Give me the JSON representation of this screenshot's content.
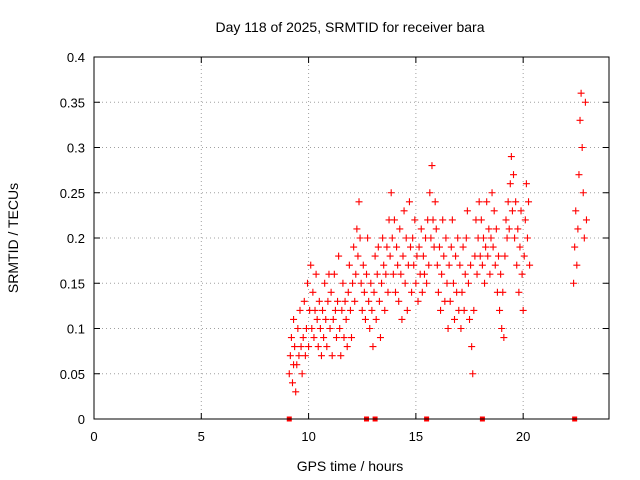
{
  "chart_data": {
    "type": "scatter",
    "title": "Day 118 of 2025, SRMTID for receiver bara",
    "xlabel": "GPS time / hours",
    "ylabel": "SRMTID / TECUs",
    "xlim": [
      0,
      24
    ],
    "ylim": [
      0,
      0.4
    ],
    "x_ticks": [
      0,
      5,
      10,
      15,
      20
    ],
    "x_tick_labels": [
      "0",
      "5",
      "10",
      "15",
      "20"
    ],
    "y_ticks": [
      0,
      0.05,
      0.1,
      0.15,
      0.2,
      0.25,
      0.3,
      0.35,
      0.4
    ],
    "y_tick_labels": [
      "0",
      "0.05",
      "0.1",
      "0.15",
      "0.2",
      "0.25",
      "0.3",
      "0.35",
      "0.4"
    ],
    "grid": true,
    "marker": "+",
    "color": "#ff0000",
    "series": [
      {
        "name": "SRMTID",
        "points": [
          [
            9.1,
            0.05
          ],
          [
            9.15,
            0.07
          ],
          [
            9.2,
            0.09
          ],
          [
            9.25,
            0.04
          ],
          [
            9.3,
            0.06
          ],
          [
            9.3,
            0.11
          ],
          [
            9.35,
            0.08
          ],
          [
            9.4,
            0.03
          ],
          [
            9.45,
            0.06
          ],
          [
            9.5,
            0.1
          ],
          [
            9.55,
            0.07
          ],
          [
            9.6,
            0.12
          ],
          [
            9.65,
            0.08
          ],
          [
            9.7,
            0.05
          ],
          [
            9.75,
            0.09
          ],
          [
            9.8,
            0.13
          ],
          [
            9.85,
            0.07
          ],
          [
            9.9,
            0.1
          ],
          [
            9.95,
            0.15
          ],
          [
            10.0,
            0.08
          ],
          [
            10.05,
            0.12
          ],
          [
            10.1,
            0.17
          ],
          [
            10.15,
            0.1
          ],
          [
            10.2,
            0.14
          ],
          [
            10.25,
            0.09
          ],
          [
            10.3,
            0.12
          ],
          [
            10.35,
            0.16
          ],
          [
            10.4,
            0.11
          ],
          [
            10.45,
            0.08
          ],
          [
            10.5,
            0.13
          ],
          [
            10.55,
            0.1
          ],
          [
            10.6,
            0.07
          ],
          [
            10.65,
            0.12
          ],
          [
            10.7,
            0.09
          ],
          [
            10.75,
            0.15
          ],
          [
            10.8,
            0.11
          ],
          [
            10.85,
            0.08
          ],
          [
            10.9,
            0.13
          ],
          [
            10.95,
            0.16
          ],
          [
            11.0,
            0.1
          ],
          [
            11.05,
            0.14
          ],
          [
            11.1,
            0.07
          ],
          [
            11.15,
            0.11
          ],
          [
            11.2,
            0.16
          ],
          [
            11.25,
            0.12
          ],
          [
            11.3,
            0.09
          ],
          [
            11.35,
            0.13
          ],
          [
            11.4,
            0.18
          ],
          [
            11.45,
            0.1
          ],
          [
            11.5,
            0.07
          ],
          [
            11.55,
            0.12
          ],
          [
            11.6,
            0.15
          ],
          [
            11.65,
            0.09
          ],
          [
            11.7,
            0.13
          ],
          [
            11.75,
            0.11
          ],
          [
            11.8,
            0.08
          ],
          [
            11.85,
            0.14
          ],
          [
            11.9,
            0.17
          ],
          [
            11.95,
            0.12
          ],
          [
            12.0,
            0.09
          ],
          [
            12.05,
            0.15
          ],
          [
            12.1,
            0.19
          ],
          [
            12.15,
            0.13
          ],
          [
            12.2,
            0.16
          ],
          [
            12.25,
            0.21
          ],
          [
            12.3,
            0.18
          ],
          [
            12.35,
            0.24
          ],
          [
            12.4,
            0.2
          ],
          [
            12.45,
            0.15
          ],
          [
            12.5,
            0.12
          ],
          [
            12.55,
            0.17
          ],
          [
            12.6,
            0.14
          ],
          [
            12.65,
            0.11
          ],
          [
            12.7,
            0.16
          ],
          [
            12.75,
            0.2
          ],
          [
            12.8,
            0.13
          ],
          [
            12.85,
            0.1
          ],
          [
            12.9,
            0.15
          ],
          [
            12.95,
            0.12
          ],
          [
            13.0,
            0.08
          ],
          [
            13.05,
            0.14
          ],
          [
            13.1,
            0.18
          ],
          [
            13.15,
            0.11
          ],
          [
            13.2,
            0.16
          ],
          [
            13.25,
            0.19
          ],
          [
            13.3,
            0.13
          ],
          [
            13.35,
            0.09
          ],
          [
            13.4,
            0.15
          ],
          [
            13.45,
            0.2
          ],
          [
            13.5,
            0.17
          ],
          [
            13.55,
            0.12
          ],
          [
            13.6,
            0.16
          ],
          [
            13.65,
            0.19
          ],
          [
            13.7,
            0.14
          ],
          [
            13.75,
            0.22
          ],
          [
            13.8,
            0.18
          ],
          [
            13.85,
            0.25
          ],
          [
            13.9,
            0.2
          ],
          [
            13.95,
            0.16
          ],
          [
            14.0,
            0.22
          ],
          [
            14.05,
            0.14
          ],
          [
            14.1,
            0.19
          ],
          [
            14.15,
            0.17
          ],
          [
            14.2,
            0.13
          ],
          [
            14.25,
            0.21
          ],
          [
            14.3,
            0.16
          ],
          [
            14.35,
            0.11
          ],
          [
            14.4,
            0.18
          ],
          [
            14.45,
            0.23
          ],
          [
            14.5,
            0.15
          ],
          [
            14.55,
            0.2
          ],
          [
            14.6,
            0.12
          ],
          [
            14.65,
            0.17
          ],
          [
            14.7,
            0.24
          ],
          [
            14.75,
            0.19
          ],
          [
            14.8,
            0.14
          ],
          [
            14.85,
            0.2
          ],
          [
            14.9,
            0.17
          ],
          [
            14.95,
            0.22
          ],
          [
            15.0,
            0.15
          ],
          [
            15.05,
            0.18
          ],
          [
            15.1,
            0.13
          ],
          [
            15.15,
            0.19
          ],
          [
            15.2,
            0.16
          ],
          [
            15.25,
            0.21
          ],
          [
            15.3,
            0.14
          ],
          [
            15.35,
            0.18
          ],
          [
            15.4,
            0.16
          ],
          [
            15.45,
            0.2
          ],
          [
            15.5,
            0.15
          ],
          [
            15.55,
            0.22
          ],
          [
            15.6,
            0.17
          ],
          [
            15.65,
            0.25
          ],
          [
            15.7,
            0.2
          ],
          [
            15.75,
            0.28
          ],
          [
            15.8,
            0.22
          ],
          [
            15.85,
            0.19
          ],
          [
            15.9,
            0.24
          ],
          [
            15.95,
            0.21
          ],
          [
            16.0,
            0.17
          ],
          [
            16.05,
            0.14
          ],
          [
            16.1,
            0.19
          ],
          [
            16.15,
            0.12
          ],
          [
            16.2,
            0.16
          ],
          [
            16.25,
            0.22
          ],
          [
            16.3,
            0.18
          ],
          [
            16.35,
            0.13
          ],
          [
            16.4,
            0.2
          ],
          [
            16.45,
            0.15
          ],
          [
            16.5,
            0.1
          ],
          [
            16.55,
            0.17
          ],
          [
            16.6,
            0.13
          ],
          [
            16.65,
            0.19
          ],
          [
            16.7,
            0.22
          ],
          [
            16.75,
            0.15
          ],
          [
            16.8,
            0.11
          ],
          [
            16.85,
            0.18
          ],
          [
            16.9,
            0.14
          ],
          [
            16.95,
            0.2
          ],
          [
            17.0,
            0.12
          ],
          [
            17.05,
            0.17
          ],
          [
            17.1,
            0.1
          ],
          [
            17.15,
            0.14
          ],
          [
            17.2,
            0.19
          ],
          [
            17.25,
            0.12
          ],
          [
            17.3,
            0.16
          ],
          [
            17.35,
            0.2
          ],
          [
            17.4,
            0.23
          ],
          [
            17.45,
            0.15
          ],
          [
            17.5,
            0.11
          ],
          [
            17.55,
            0.17
          ],
          [
            17.6,
            0.08
          ],
          [
            17.65,
            0.05
          ],
          [
            17.7,
            0.12
          ],
          [
            17.75,
            0.18
          ],
          [
            17.8,
            0.22
          ],
          [
            17.85,
            0.16
          ],
          [
            17.9,
            0.2
          ],
          [
            17.95,
            0.24
          ],
          [
            18.0,
            0.18
          ],
          [
            18.05,
            0.22
          ],
          [
            18.1,
            0.17
          ],
          [
            18.15,
            0.2
          ],
          [
            18.2,
            0.15
          ],
          [
            18.25,
            0.19
          ],
          [
            18.3,
            0.24
          ],
          [
            18.35,
            0.18
          ],
          [
            18.4,
            0.21
          ],
          [
            18.45,
            0.16
          ],
          [
            18.5,
            0.2
          ],
          [
            18.55,
            0.25
          ],
          [
            18.6,
            0.19
          ],
          [
            18.65,
            0.23
          ],
          [
            18.7,
            0.17
          ],
          [
            18.75,
            0.21
          ],
          [
            18.8,
            0.14
          ],
          [
            18.85,
            0.18
          ],
          [
            18.9,
            0.12
          ],
          [
            18.95,
            0.16
          ],
          [
            19.0,
            0.1
          ],
          [
            19.05,
            0.14
          ],
          [
            19.1,
            0.09
          ],
          [
            19.15,
            0.18
          ],
          [
            19.2,
            0.22
          ],
          [
            19.25,
            0.2
          ],
          [
            19.3,
            0.24
          ],
          [
            19.35,
            0.21
          ],
          [
            19.4,
            0.26
          ],
          [
            19.45,
            0.29
          ],
          [
            19.5,
            0.23
          ],
          [
            19.55,
            0.27
          ],
          [
            19.6,
            0.2
          ],
          [
            19.65,
            0.24
          ],
          [
            19.7,
            0.17
          ],
          [
            19.75,
            0.21
          ],
          [
            19.8,
            0.14
          ],
          [
            19.85,
            0.19
          ],
          [
            19.9,
            0.23
          ],
          [
            19.95,
            0.16
          ],
          [
            20.0,
            0.12
          ],
          [
            20.05,
            0.18
          ],
          [
            20.1,
            0.22
          ],
          [
            20.15,
            0.26
          ],
          [
            20.2,
            0.2
          ],
          [
            20.25,
            0.24
          ],
          [
            20.3,
            0.17
          ],
          [
            22.35,
            0.15
          ],
          [
            22.4,
            0.19
          ],
          [
            22.45,
            0.23
          ],
          [
            22.5,
            0.17
          ],
          [
            22.55,
            0.21
          ],
          [
            22.6,
            0.27
          ],
          [
            22.65,
            0.33
          ],
          [
            22.7,
            0.36
          ],
          [
            22.75,
            0.3
          ],
          [
            22.8,
            0.25
          ],
          [
            22.85,
            0.2
          ],
          [
            22.9,
            0.35
          ],
          [
            22.95,
            0.22
          ]
        ]
      }
    ],
    "gap_marks_x": [
      9.1,
      12.7,
      13.1,
      15.5,
      18.1,
      22.4
    ]
  }
}
